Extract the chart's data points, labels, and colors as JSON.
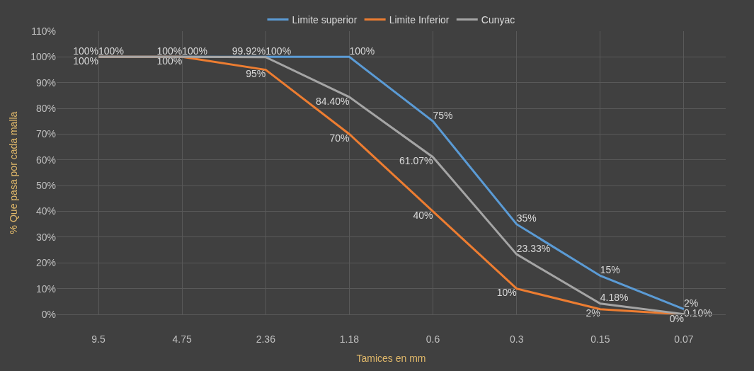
{
  "chart_data": {
    "type": "line",
    "xlabel": "Tamices en mm",
    "ylabel": "% Que pasa por cada malla",
    "categories": [
      "9.5",
      "4.75",
      "2.36",
      "1.18",
      "0.6",
      "0.3",
      "0.15",
      "0.07"
    ],
    "series": [
      {
        "name": "Limite superior",
        "color": "#5b9bd5",
        "values": [
          100,
          100,
          100,
          100,
          75,
          35,
          15,
          2
        ],
        "value_labels": [
          "100%",
          "100%",
          "100%",
          "100%",
          "75%",
          "35%",
          "15%",
          "2%"
        ]
      },
      {
        "name": "Limite Inferior",
        "color": "#ed7d31",
        "values": [
          100,
          100,
          95,
          70,
          40,
          10,
          2,
          0
        ],
        "value_labels": [
          "100%",
          "100%",
          "95%",
          "70%",
          "40%",
          "10%",
          "2%",
          "0%"
        ]
      },
      {
        "name": "Cunyac",
        "color": "#a5a5a5",
        "values": [
          100,
          100,
          99.92,
          84.4,
          61.07,
          23.33,
          4.18,
          0.1
        ],
        "value_labels": [
          "100%",
          "100%",
          "99.92%",
          "84.40%",
          "61.07%",
          "23.33%",
          "4.18%",
          "0.10%"
        ]
      }
    ],
    "ylim": [
      0,
      110
    ],
    "yticks": [
      {
        "value": 0,
        "label": "0%"
      },
      {
        "value": 10,
        "label": "10%"
      },
      {
        "value": 20,
        "label": "20%"
      },
      {
        "value": 30,
        "label": "30%"
      },
      {
        "value": 40,
        "label": "40%"
      },
      {
        "value": 50,
        "label": "50%"
      },
      {
        "value": 60,
        "label": "60%"
      },
      {
        "value": 70,
        "label": "70%"
      },
      {
        "value": 80,
        "label": "80%"
      },
      {
        "value": 90,
        "label": "90%"
      },
      {
        "value": 100,
        "label": "100%"
      },
      {
        "value": 110,
        "label": "110%"
      }
    ],
    "grid": true,
    "legend": "top",
    "marker": "none",
    "line_style": "solid"
  }
}
